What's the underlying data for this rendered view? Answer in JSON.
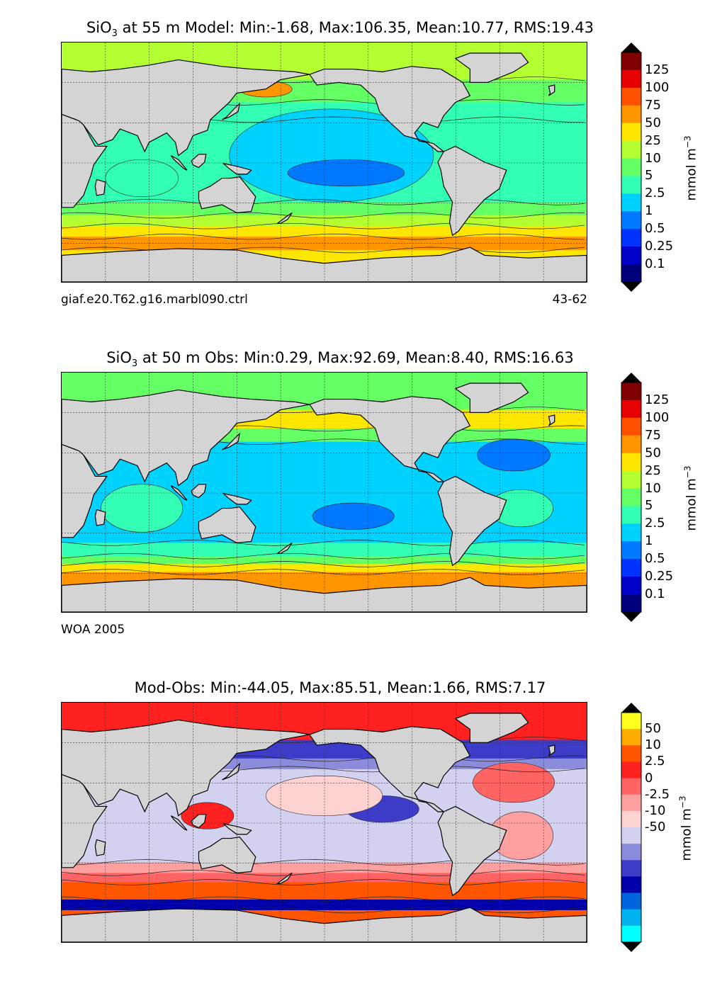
{
  "panels": [
    {
      "id": "model",
      "title": "SiO",
      "title_sub": "3",
      "title_rest": " at 55 m Model: Min:-1.68, Max:106.35, Mean:10.77, RMS:19.43",
      "label_left": "giaf.e20.T62.g16.marbl090.ctrl",
      "label_right": "43-62",
      "colorbar": {
        "ticks": [
          "125",
          "100",
          "75",
          "50",
          "25",
          "10",
          "5",
          "2.5",
          "1",
          "0.5",
          "0.25",
          "0.1"
        ],
        "colors": [
          "#800000",
          "#e60000",
          "#ff5000",
          "#ff9600",
          "#ffe600",
          "#b4ff32",
          "#64ff64",
          "#32ffb4",
          "#00d2ff",
          "#0078ff",
          "#0032ff",
          "#0000c8",
          "#00007d"
        ],
        "unit": "mmol m",
        "unit_sup": "−3"
      }
    },
    {
      "id": "obs",
      "title": "SiO",
      "title_sub": "3",
      "title_rest": " at 50 m Obs: Min:0.29, Max:92.69, Mean:8.40, RMS:16.63",
      "label_left": "WOA 2005",
      "label_right": "",
      "colorbar": {
        "ticks": [
          "125",
          "100",
          "75",
          "50",
          "25",
          "10",
          "5",
          "2.5",
          "1",
          "0.5",
          "0.25",
          "0.1"
        ],
        "colors": [
          "#800000",
          "#e60000",
          "#ff5000",
          "#ff9600",
          "#ffe600",
          "#b4ff32",
          "#64ff64",
          "#32ffb4",
          "#00d2ff",
          "#0078ff",
          "#0032ff",
          "#0000c8",
          "#00007d"
        ],
        "unit": "mmol m",
        "unit_sup": "−3"
      }
    },
    {
      "id": "diff",
      "title": "",
      "title_sub": "",
      "title_rest": "Mod-Obs: Min:-44.05, Max:85.51, Mean:1.66, RMS:7.17",
      "label_left": "",
      "label_right": "",
      "colorbar": {
        "ticks": [
          "50",
          "10",
          "2.5",
          "0",
          "-2.5",
          "-10",
          "-50"
        ],
        "colors": [
          "#ffff1e",
          "#ffaa00",
          "#ff5500",
          "#ff2020",
          "#ff6464",
          "#ffa0a0",
          "#ffd2d2",
          "#d2d2f0",
          "#8c8cdc",
          "#3c3cc8",
          "#0000aa",
          "#0064dc",
          "#00b4f0",
          "#00ffff"
        ],
        "unit": "mmol m",
        "unit_sup": "−3"
      }
    }
  ]
}
